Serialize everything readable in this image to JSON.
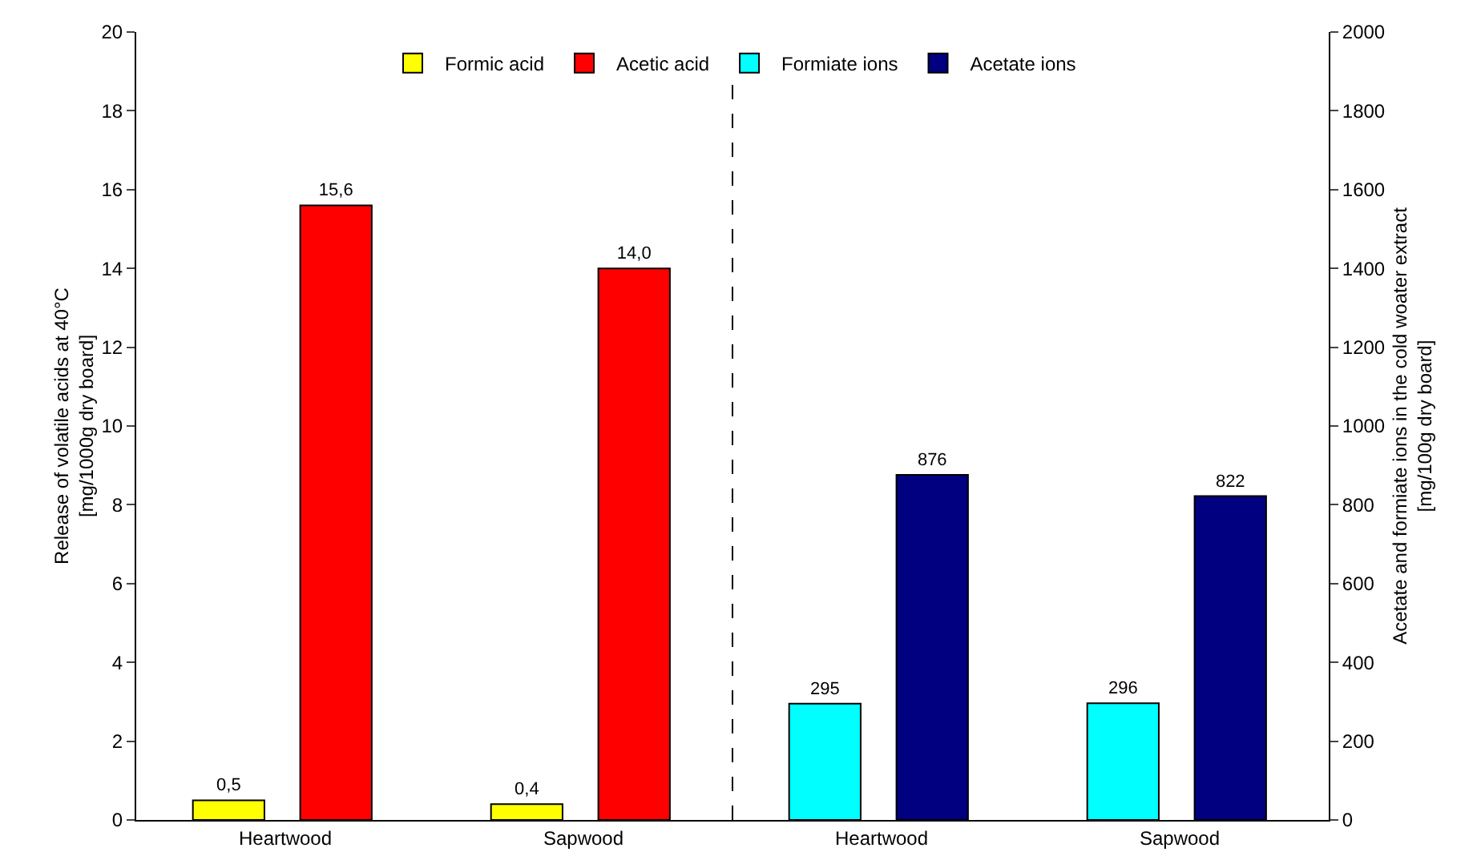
{
  "chart_data": {
    "type": "bar",
    "ylabel": "Release of volatile acids at 40°C\n[mg/1000g dry board]",
    "y2label": "Acetate and formiate ions in the cold woater extract\n[mg/100g dry board]",
    "categories": [
      "Heartwood",
      "Sapwood",
      "Heartwood",
      "Sapwood"
    ],
    "series": [
      {
        "name": "Formic acid",
        "color": "#ffff00",
        "values": [
          0.5,
          0.4,
          null,
          null
        ],
        "value_labels": [
          "0,5",
          "0,4",
          null,
          null
        ]
      },
      {
        "name": "Acetic acid",
        "color": "#ff0000",
        "values": [
          15.6,
          14.0,
          null,
          null
        ],
        "value_labels": [
          "15,6",
          "14,0",
          null,
          null
        ]
      },
      {
        "name": "Formiate ions",
        "color": "#00ffff",
        "axis": "y2",
        "values": [
          null,
          null,
          295,
          296
        ],
        "value_labels": [
          null,
          null,
          "295",
          "296"
        ]
      },
      {
        "name": "Acetate ions",
        "color": "#000080",
        "axis": "y2",
        "values": [
          null,
          null,
          876,
          822
        ],
        "value_labels": [
          null,
          null,
          "876",
          "822"
        ]
      }
    ],
    "ylim": [
      0,
      20
    ],
    "yticks": [
      0,
      2,
      4,
      6,
      8,
      10,
      12,
      14,
      16,
      18,
      20
    ],
    "y2lim": [
      0,
      2000
    ],
    "y2ticks": [
      0,
      200,
      400,
      600,
      800,
      1000,
      1200,
      1400,
      1600,
      1800,
      2000
    ],
    "grid": false,
    "legend": "top"
  }
}
